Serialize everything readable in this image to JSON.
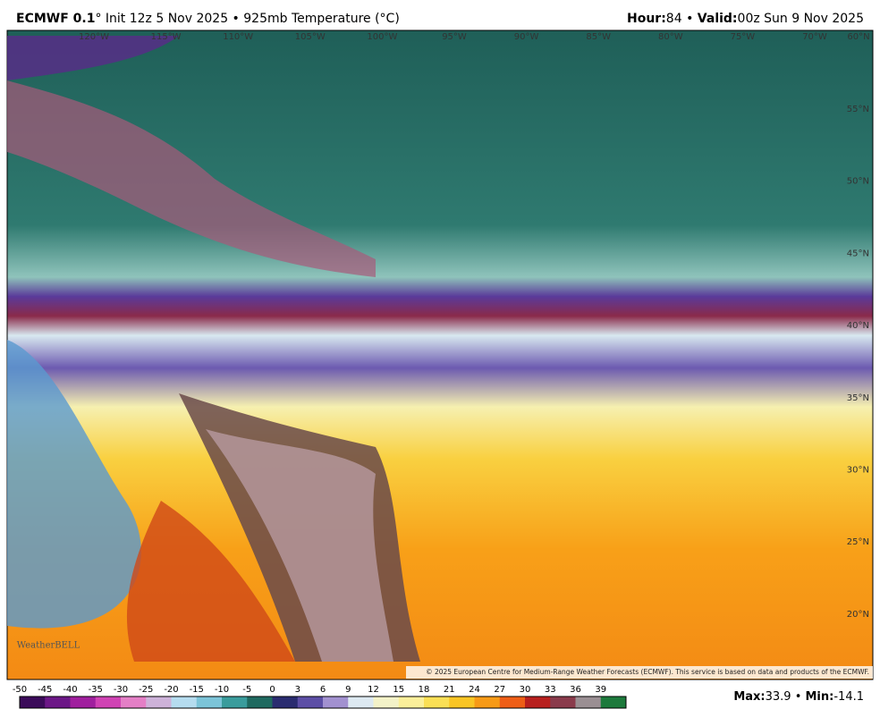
{
  "header": {
    "model": "ECMWF 0.1",
    "title_rest": "° Init 12z 5 Nov 2025 • 925mb Temperature (°C)",
    "hour_label": "Hour:",
    "hour": 84,
    "sep": " • ",
    "valid_label": "Valid:",
    "valid": "00z Sun 9 Nov 2025"
  },
  "map": {
    "lon_labels": [
      "120°W",
      "115°W",
      "110°W",
      "105°W",
      "100°W",
      "95°W",
      "90°W",
      "85°W",
      "80°W",
      "75°W",
      "70°W"
    ],
    "corner_label": "60°N",
    "lat_labels": [
      "55°N",
      "50°N",
      "45°N",
      "40°N",
      "35°N",
      "30°N",
      "25°N",
      "20°N"
    ],
    "logo": "WeatherBELL",
    "copyright": "© 2025 European Centre for Medium-Range Weather Forecasts (ECMWF). This service is based on data and products of the ECMWF."
  },
  "colorbar": {
    "ticks": [
      -50,
      -45,
      -40,
      -35,
      -30,
      -25,
      -20,
      -15,
      -10,
      -5,
      0,
      3,
      6,
      9,
      12,
      15,
      18,
      21,
      24,
      27,
      30,
      33,
      36,
      39
    ],
    "colors": [
      "#3b0b5a",
      "#6c1787",
      "#a01f9e",
      "#d043b4",
      "#e47fc6",
      "#cdb2d9",
      "#b5dcef",
      "#7cc4d8",
      "#3a9c9c",
      "#1f6a60",
      "#2a2c70",
      "#5d4fa6",
      "#a291d0",
      "#dde9f1",
      "#f3f2c8",
      "#fbef9a",
      "#fadf55",
      "#f9c524",
      "#f79a16",
      "#ee5e16",
      "#b8201e",
      "#8a3b4c",
      "#9a8f93",
      "#1d7a3c"
    ]
  },
  "footer": {
    "max_label": "Max:",
    "max": 33.9,
    "sep": " • ",
    "min_label": "Min:",
    "min": -14.1
  }
}
